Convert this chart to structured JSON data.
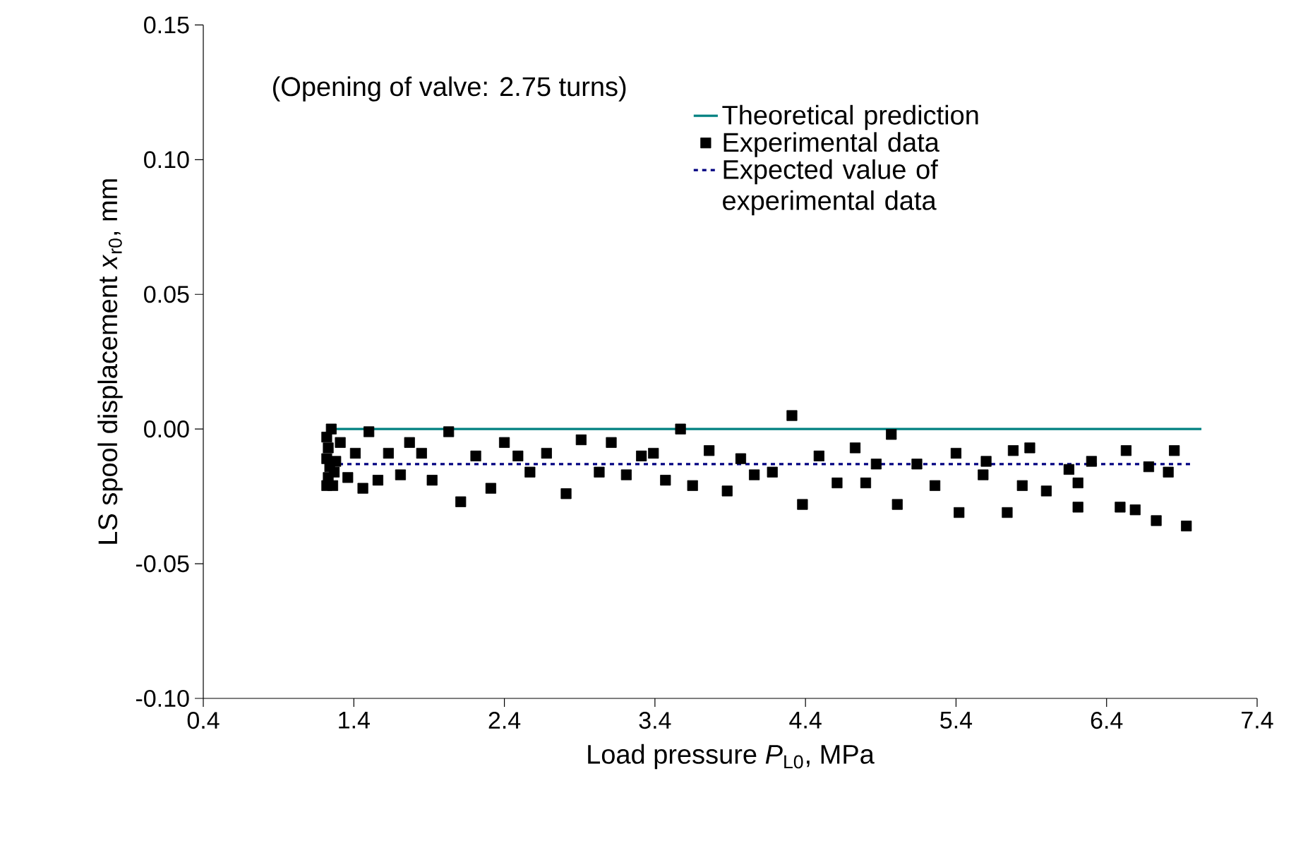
{
  "chart_data": {
    "type": "scatter",
    "xlabel": "Load pressure *P*$_{L0}$, MPa",
    "ylabel": "LS spool displacement *x*$_{r0}$, mm",
    "annotations": [
      "(Opening of valve: 2.75 turns)"
    ],
    "xlim": [
      0.4,
      7.4
    ],
    "xticks": [
      0.4,
      1.4,
      2.4,
      3.4,
      4.4,
      5.4,
      6.4,
      7.4
    ],
    "ylim": [
      -0.1,
      0.15
    ],
    "yticks": [
      {
        "value": -0.1,
        "label": "-0.10"
      },
      {
        "value": -0.05,
        "label": "-0.05"
      },
      {
        "value": 0,
        "label": "0.00"
      },
      {
        "value": 0.05,
        "label": "0.05"
      },
      {
        "value": 0.1,
        "label": "0.10"
      },
      {
        "value": 0.15,
        "label": "0.15"
      }
    ],
    "grid": false,
    "legend": "top right",
    "series": [
      {
        "name": "Theoretical prediction",
        "type": "line",
        "color": "#008080",
        "marker": "none",
        "line_style": "solid",
        "x": [
          1.25,
          7.03
        ],
        "values": [
          0,
          0
        ]
      },
      {
        "name": "Experimental data",
        "color": "#000000",
        "marker": "square",
        "x": [
          1.25,
          1.5,
          2.03,
          1.31,
          1.77,
          1.41,
          1.63,
          1.85,
          2.21,
          2.4,
          2.49,
          2.68,
          2.91,
          3.11,
          2.57,
          3.03,
          3.21,
          1.36,
          1.56,
          1.71,
          1.92,
          1.46,
          2.31,
          2.11,
          2.81,
          1.22,
          1.23,
          1.22,
          1.24,
          1.23,
          1.22,
          1.26,
          1.28,
          1.27,
          3.57,
          4.31,
          4.97,
          3.31,
          3.39,
          3.76,
          3.97,
          4.49,
          4.73,
          4.87,
          5.14,
          5.4,
          3.47,
          3.65,
          3.88,
          4.06,
          4.18,
          4.61,
          4.8,
          5.26,
          4.38,
          5.01,
          5.42,
          5.6,
          5.78,
          5.89,
          5.58,
          5.84,
          6.0,
          6.15,
          6.21,
          6.3,
          6.53,
          6.68,
          6.85,
          6.81,
          5.74,
          6.21,
          6.49,
          6.59,
          6.73,
          6.93
        ],
        "values": [
          0.0,
          -0.001,
          -0.001,
          -0.005,
          -0.005,
          -0.009,
          -0.009,
          -0.009,
          -0.01,
          -0.005,
          -0.01,
          -0.009,
          -0.004,
          -0.005,
          -0.016,
          -0.016,
          -0.017,
          -0.018,
          -0.019,
          -0.017,
          -0.019,
          -0.022,
          -0.022,
          -0.027,
          -0.024,
          -0.003,
          -0.007,
          -0.011,
          -0.014,
          -0.018,
          -0.021,
          -0.021,
          -0.012,
          -0.016,
          0.0,
          0.005,
          -0.002,
          -0.01,
          -0.009,
          -0.008,
          -0.011,
          -0.01,
          -0.007,
          -0.013,
          -0.013,
          -0.009,
          -0.019,
          -0.021,
          -0.023,
          -0.017,
          -0.016,
          -0.02,
          -0.02,
          -0.021,
          -0.028,
          -0.028,
          -0.031,
          -0.012,
          -0.008,
          -0.007,
          -0.017,
          -0.021,
          -0.023,
          -0.015,
          -0.02,
          -0.012,
          -0.008,
          -0.014,
          -0.008,
          -0.016,
          -0.031,
          -0.029,
          -0.029,
          -0.03,
          -0.034,
          -0.036
        ]
      },
      {
        "name": "Expected value of experimental data",
        "type": "line",
        "color": "#000080",
        "marker": "none",
        "line_style": "dashed",
        "x": [
          1.3,
          6.97
        ],
        "values": [
          -0.013,
          -0.013
        ]
      }
    ]
  }
}
